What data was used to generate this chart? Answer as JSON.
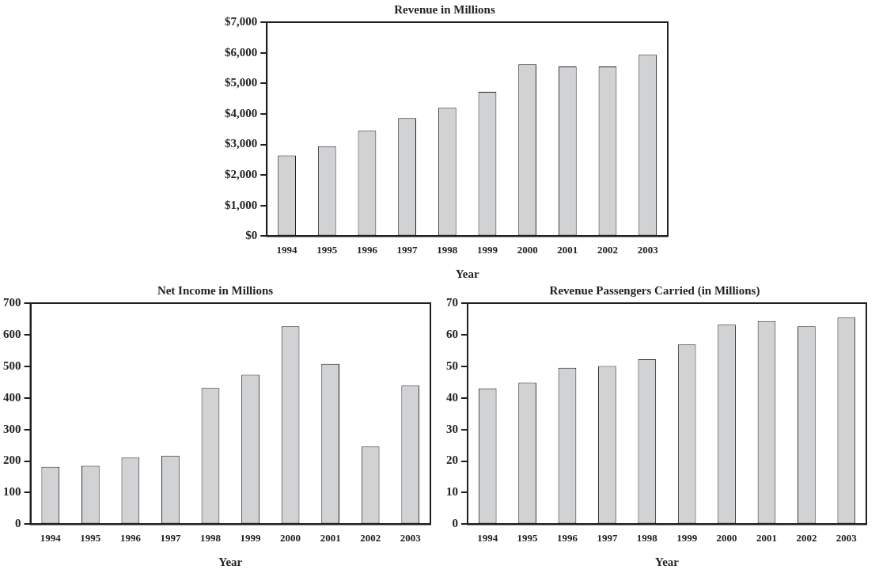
{
  "chart_data": [
    {
      "type": "bar",
      "title": "Revenue in Millions",
      "xlabel": "Year",
      "categories": [
        "1994",
        "1995",
        "1996",
        "1997",
        "1998",
        "1999",
        "2000",
        "2001",
        "2002",
        "2003"
      ],
      "values": [
        2640,
        2940,
        3450,
        3860,
        4200,
        4720,
        5620,
        5550,
        5550,
        5930
      ],
      "color": "#d1d2d4",
      "ylim": [
        0,
        7000
      ],
      "yticks": [
        {
          "value": 0,
          "label": "$0"
        },
        {
          "value": 1000,
          "label": "$1,000"
        },
        {
          "value": 2000,
          "label": "$2,000"
        },
        {
          "value": 3000,
          "label": "$3,000"
        },
        {
          "value": 4000,
          "label": "$4,000"
        },
        {
          "value": 5000,
          "label": "$5,000"
        },
        {
          "value": 6000,
          "label": "$6,000"
        },
        {
          "value": 7000,
          "label": "$7,000"
        }
      ]
    },
    {
      "type": "bar",
      "title": "Net Income in Millions",
      "xlabel": "Year",
      "categories": [
        "1994",
        "1995",
        "1996",
        "1997",
        "1998",
        "1999",
        "2000",
        "2001",
        "2002",
        "2003"
      ],
      "values": [
        182,
        185,
        211,
        217,
        431,
        473,
        627,
        508,
        246,
        439
      ],
      "color": "#d1d2d4",
      "ylim": [
        0,
        700
      ],
      "yticks": [
        0,
        100,
        200,
        300,
        400,
        500,
        600,
        700
      ]
    },
    {
      "type": "bar",
      "title": "Revenue Passengers Carried (in Millions)",
      "xlabel": "Year",
      "categories": [
        "1994",
        "1995",
        "1996",
        "1997",
        "1998",
        "1999",
        "2000",
        "2001",
        "2002",
        "2003"
      ],
      "values": [
        43.0,
        44.8,
        49.5,
        50.1,
        52.2,
        56.9,
        63.2,
        64.3,
        62.7,
        65.4
      ],
      "color": "#d1d2d4",
      "ylim": [
        0,
        70
      ],
      "yticks": [
        0,
        10,
        20,
        30,
        40,
        50,
        60,
        70
      ]
    }
  ]
}
